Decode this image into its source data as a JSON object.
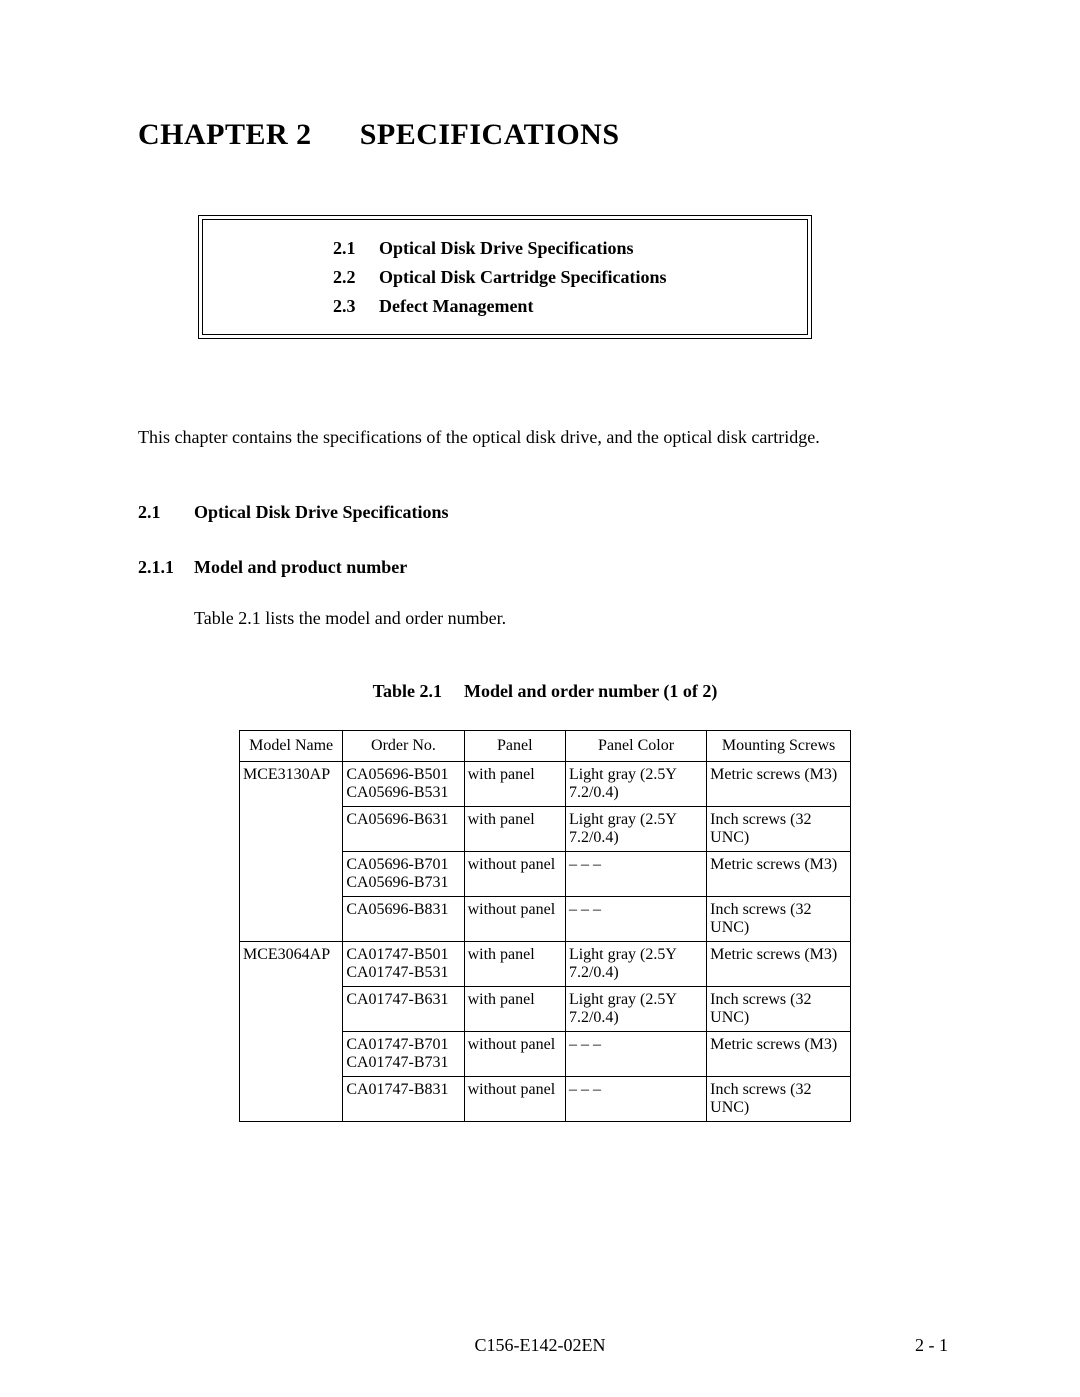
{
  "chapter": {
    "label": "CHAPTER 2",
    "title": "SPECIFICATIONS"
  },
  "toc": [
    {
      "num": "2.1",
      "text": "Optical Disk Drive Specifications"
    },
    {
      "num": "2.2",
      "text": "Optical Disk Cartridge Specifications"
    },
    {
      "num": "2.3",
      "text": "Defect Management"
    }
  ],
  "intro": "This chapter contains the specifications of the optical disk drive, and the optical disk cartridge.",
  "section": {
    "num": "2.1",
    "title": "Optical Disk Drive Specifications"
  },
  "subsection": {
    "num": "2.1.1",
    "title": "Model and product number"
  },
  "body1": "Table 2.1 lists the model and order number.",
  "tablecap": {
    "label": "Table 2.1",
    "text": "Model and order number (1 of 2)"
  },
  "table": {
    "columns": [
      "Model Name",
      "Order No.",
      "Panel",
      "Panel Color",
      "Mounting Screws"
    ],
    "rows": [
      {
        "model": "MCE3130AP",
        "order": "CA05696-B501\nCA05696-B531",
        "panel": "with panel",
        "color": "Light gray (2.5Y  7.2/0.4)",
        "screw": "Metric screws (M3)"
      },
      {
        "model": "",
        "order": "CA05696-B631",
        "panel": "with panel",
        "color": "Light gray (2.5Y  7.2/0.4)",
        "screw": "Inch screws (32 UNC)"
      },
      {
        "model": "",
        "order": "CA05696-B701\nCA05696-B731",
        "panel": "without panel",
        "color": "– – –",
        "screw": "Metric screws (M3)"
      },
      {
        "model": "",
        "order": "CA05696-B831",
        "panel": "without panel",
        "color": "– – –",
        "screw": "Inch screws (32 UNC)",
        "last": true
      },
      {
        "model": "MCE3064AP",
        "order": "CA01747-B501\nCA01747-B531",
        "panel": "with panel",
        "color": "Light gray (2.5Y  7.2/0.4)",
        "screw": "Metric screws (M3)"
      },
      {
        "model": "",
        "order": "CA01747-B631",
        "panel": "with panel",
        "color": "Light gray (2.5Y  7.2/0.4)",
        "screw": "Inch screws (32 UNC)"
      },
      {
        "model": "",
        "order": "CA01747-B701\nCA01747-B731",
        "panel": "without panel",
        "color": "– – –",
        "screw": "Metric screws (M3)"
      },
      {
        "model": "",
        "order": "CA01747-B831",
        "panel": "without panel",
        "color": "– – –",
        "screw": "Inch screws (32 UNC)",
        "last": true
      }
    ]
  },
  "footer": {
    "doc": "C156-E142-02EN",
    "page": "2 - 1"
  }
}
